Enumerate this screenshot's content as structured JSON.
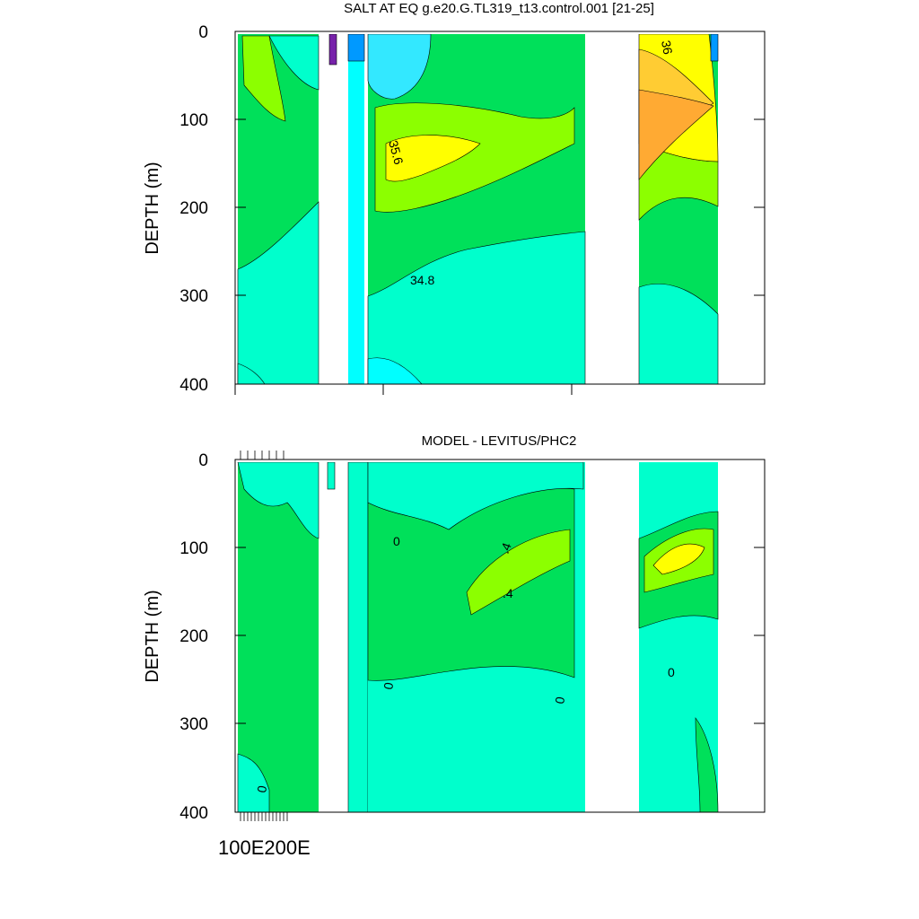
{
  "chart_data": [
    {
      "type": "contour",
      "title": "SALT AT EQ g.e20.G.TL319_t13.control.001 [21-25]",
      "ylabel": "DEPTH (m)",
      "ylim": [
        0,
        400
      ],
      "y_inverted": true,
      "y_ticks": [
        "0",
        "100",
        "200",
        "300",
        "400"
      ],
      "contour_labels": [
        "35.6",
        "34.8",
        "36"
      ],
      "colors": {
        "deep_cyan": "#00ffcc",
        "bright_cyan": "#00ffff",
        "light_cyan": "#33e8ff",
        "green": "#00e05a",
        "lime": "#8cff00",
        "yellow": "#ffff00",
        "gold": "#ffcc33",
        "orange": "#ffaa33",
        "blue": "#0099ff",
        "purple": "#7722aa"
      }
    },
    {
      "type": "contour",
      "title": "MODEL - LEVITUS/PHC2",
      "ylabel": "DEPTH (m)",
      "ylim": [
        0,
        400
      ],
      "y_inverted": true,
      "y_ticks": [
        "0",
        "100",
        "200",
        "300",
        "400"
      ],
      "x_tick_label": "100E200E",
      "contour_labels": [
        "0",
        ".4",
        ".4",
        "0",
        "0",
        "0",
        "0"
      ],
      "colors": {
        "deep_cyan": "#00ffcc",
        "green": "#00e05a",
        "lime": "#8cff00",
        "yellow": "#ffff00"
      }
    }
  ]
}
